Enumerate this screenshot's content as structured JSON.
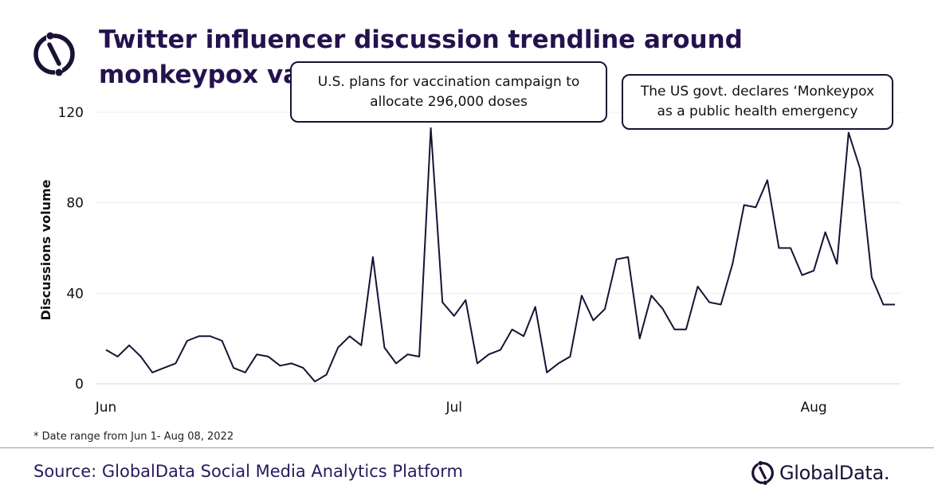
{
  "header": {
    "title": "Twitter influencer discussion trendline around monkeypox vaccine"
  },
  "annotations": [
    {
      "text": "U.S. plans for vaccination campaign to\nallocate 296,000 doses"
    },
    {
      "text": "The US govt. declares ‘Monkeypox\nas a public health emergency"
    }
  ],
  "footer": {
    "footnote": "* Date range from Jun 1- Aug 08, 2022",
    "source": "Source: GlobalData Social Media Analytics Platform",
    "brand": "GlobalData."
  },
  "colors": {
    "line": "#1c1135",
    "title": "#24124d",
    "grid": "#ececec",
    "axis": "#d6d6d6"
  },
  "chart_data": {
    "type": "line",
    "title": "Twitter influencer discussion trendline around monkeypox vaccine",
    "xlabel": "",
    "ylabel": "Discussions  volume",
    "ylim": [
      0,
      120
    ],
    "yticks": [
      0,
      40,
      80,
      120
    ],
    "grid": true,
    "legend": "none",
    "x_tick_labels": [
      {
        "label": "Jun",
        "date": "2022-06-01"
      },
      {
        "label": "Jul",
        "date": "2022-07-01"
      },
      {
        "label": "Aug",
        "date": "2022-08-01"
      }
    ],
    "x": [
      "2022-06-01",
      "2022-06-02",
      "2022-06-03",
      "2022-06-04",
      "2022-06-05",
      "2022-06-06",
      "2022-06-07",
      "2022-06-08",
      "2022-06-09",
      "2022-06-10",
      "2022-06-11",
      "2022-06-12",
      "2022-06-13",
      "2022-06-14",
      "2022-06-15",
      "2022-06-16",
      "2022-06-17",
      "2022-06-18",
      "2022-06-19",
      "2022-06-20",
      "2022-06-21",
      "2022-06-22",
      "2022-06-23",
      "2022-06-24",
      "2022-06-25",
      "2022-06-26",
      "2022-06-27",
      "2022-06-28",
      "2022-06-29",
      "2022-06-30",
      "2022-07-01",
      "2022-07-02",
      "2022-07-03",
      "2022-07-04",
      "2022-07-05",
      "2022-07-06",
      "2022-07-07",
      "2022-07-08",
      "2022-07-09",
      "2022-07-10",
      "2022-07-11",
      "2022-07-12",
      "2022-07-13",
      "2022-07-14",
      "2022-07-15",
      "2022-07-16",
      "2022-07-17",
      "2022-07-18",
      "2022-07-19",
      "2022-07-20",
      "2022-07-21",
      "2022-07-22",
      "2022-07-23",
      "2022-07-24",
      "2022-07-25",
      "2022-07-26",
      "2022-07-27",
      "2022-07-28",
      "2022-07-29",
      "2022-07-30",
      "2022-07-31",
      "2022-08-01",
      "2022-08-02",
      "2022-08-03",
      "2022-08-04",
      "2022-08-05",
      "2022-08-06",
      "2022-08-07",
      "2022-08-08"
    ],
    "series": [
      {
        "values": [
          15,
          12,
          17,
          12,
          5,
          7,
          9,
          19,
          21,
          21,
          19,
          7,
          5,
          13,
          12,
          8,
          9,
          7,
          1,
          4,
          16,
          21,
          17,
          56,
          16,
          9,
          13,
          12,
          113,
          36,
          30,
          37,
          9,
          13,
          15,
          24,
          21,
          34,
          5,
          9,
          12,
          39,
          28,
          33,
          55,
          56,
          20,
          39,
          33,
          24,
          24,
          43,
          36,
          35,
          53,
          79,
          78,
          90,
          60,
          60,
          48,
          50,
          67,
          53,
          111,
          95,
          47,
          35,
          35
        ]
      }
    ]
  }
}
